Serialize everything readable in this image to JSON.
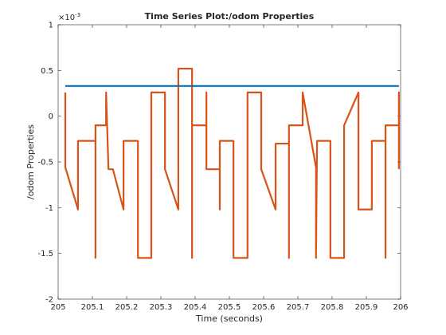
{
  "chart_data": {
    "type": "line",
    "title": "Time Series Plot:/odom Properties",
    "xlabel": "Time (seconds)",
    "ylabel": "/odom Properties",
    "y_multiplier": {
      "base": "×10",
      "exponent": "-3"
    },
    "xlim": [
      205,
      206
    ],
    "ylim": [
      -2,
      1
    ],
    "xticks": [
      205,
      205.1,
      205.2,
      205.3,
      205.4,
      205.5,
      205.6,
      205.7,
      205.8,
      205.9,
      206
    ],
    "yticks": [
      -2,
      -1.5,
      -1,
      -0.5,
      0,
      0.5,
      1
    ],
    "grid": false,
    "series": [
      {
        "name": "blue",
        "color": "#0072bd",
        "x": [
          205.021,
          205.995
        ],
        "values": [
          0.33,
          0.33
        ]
      },
      {
        "name": "orange",
        "color": "#d95319",
        "x": [
          205.021,
          205.021,
          205.058,
          205.058,
          205.109,
          205.109,
          205.109,
          205.14,
          205.14,
          205.147,
          205.16,
          205.191,
          205.191,
          205.233,
          205.233,
          205.272,
          205.272,
          205.312,
          205.312,
          205.351,
          205.351,
          205.391,
          205.391,
          205.391,
          205.433,
          205.433,
          205.433,
          205.472,
          205.472,
          205.472,
          205.512,
          205.512,
          205.553,
          205.553,
          205.593,
          205.593,
          205.635,
          205.635,
          205.674,
          205.674,
          205.674,
          205.714,
          205.714,
          205.753,
          205.753,
          205.756,
          205.795,
          205.795,
          205.835,
          205.835,
          205.877,
          205.877,
          205.916,
          205.916,
          205.956,
          205.956,
          205.956,
          205.995,
          205.995,
          205.995
        ],
        "values": [
          0.26,
          -0.56,
          -1.02,
          -0.27,
          -0.27,
          -1.55,
          -0.1,
          -0.1,
          0.26,
          -0.58,
          -0.58,
          -1.02,
          -0.27,
          -0.27,
          -1.55,
          -1.55,
          0.26,
          0.26,
          -0.58,
          -1.02,
          0.52,
          0.52,
          -1.55,
          -0.1,
          -0.1,
          0.26,
          -0.58,
          -0.58,
          -1.02,
          -0.27,
          -0.27,
          -1.55,
          -1.55,
          0.26,
          0.26,
          -0.58,
          -1.02,
          -0.3,
          -0.3,
          -1.55,
          -0.1,
          -0.1,
          0.26,
          -0.56,
          -1.55,
          -0.27,
          -0.27,
          -1.55,
          -1.55,
          -0.1,
          0.26,
          -1.02,
          -1.02,
          -0.27,
          -0.27,
          -1.55,
          -0.1,
          -0.1,
          0.26,
          -0.58
        ]
      }
    ]
  }
}
